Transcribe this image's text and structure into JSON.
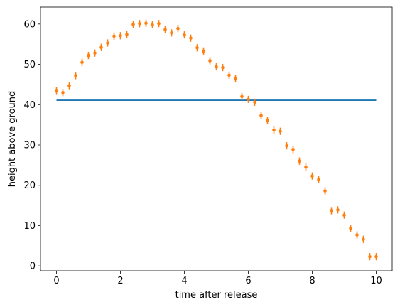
{
  "chart_data": {
    "type": "scatter",
    "title": "",
    "xlabel": "time after release",
    "ylabel": "height above ground",
    "xlim": [
      -0.5,
      10.5
    ],
    "ylim": [
      -1.2,
      64.2
    ],
    "xticks": [
      0,
      2,
      4,
      6,
      8,
      10
    ],
    "yticks": [
      0,
      10,
      20,
      30,
      40,
      50,
      60
    ],
    "grid": false,
    "colors": {
      "line": "#1f77b4",
      "points": "#ff7f0e"
    },
    "series": [
      {
        "type": "line",
        "x": [
          0,
          10
        ],
        "y": [
          41.1,
          41.1
        ]
      },
      {
        "type": "errorbar",
        "error": 0.9,
        "x": [
          0.0,
          0.2,
          0.4,
          0.6,
          0.8,
          1.0,
          1.2,
          1.4,
          1.6,
          1.8,
          2.0,
          2.2,
          2.4,
          2.6,
          2.8,
          3.0,
          3.2,
          3.4,
          3.6,
          3.8,
          4.0,
          4.2,
          4.4,
          4.6,
          4.8,
          5.0,
          5.2,
          5.4,
          5.6,
          5.8,
          6.0,
          6.2,
          6.4,
          6.6,
          6.8,
          7.0,
          7.2,
          7.4,
          7.6,
          7.8,
          8.0,
          8.2,
          8.4,
          8.6,
          8.8,
          9.0,
          9.2,
          9.4,
          9.6,
          9.8,
          10.0
        ],
        "y": [
          43.5,
          43.0,
          44.7,
          47.2,
          50.5,
          52.2,
          52.8,
          54.2,
          55.3,
          57.0,
          57.1,
          57.4,
          59.9,
          60.1,
          60.2,
          59.8,
          60.1,
          58.6,
          57.8,
          58.9,
          57.3,
          56.5,
          54.1,
          53.3,
          50.9,
          49.4,
          49.2,
          47.3,
          46.4,
          42.0,
          41.3,
          40.6,
          37.3,
          36.1,
          33.7,
          33.4,
          29.8,
          28.9,
          26.0,
          24.5,
          22.3,
          21.4,
          18.6,
          13.7,
          13.9,
          12.6,
          9.3,
          7.7,
          6.6,
          2.3,
          2.3
        ]
      }
    ]
  }
}
